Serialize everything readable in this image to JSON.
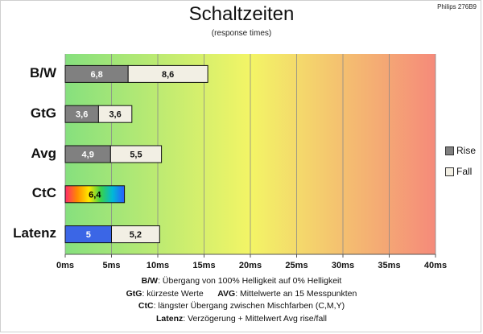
{
  "chart_data": {
    "type": "bar",
    "title": "Schaltzeiten",
    "subtitle": "(response times)",
    "model": "Philips 276B9",
    "categories": [
      "B/W",
      "GtG",
      "Avg",
      "CtC",
      "Latenz"
    ],
    "series": [
      {
        "name": "Rise",
        "values": [
          6.8,
          3.6,
          4.9,
          6.4,
          5
        ],
        "labels": [
          "6,8",
          "3,6",
          "4,9",
          "6,4",
          "5"
        ],
        "color": "#808080"
      },
      {
        "name": "Fall",
        "values": [
          8.6,
          3.6,
          5.5,
          null,
          5.2
        ],
        "labels": [
          "8,6",
          "3,6",
          "5,5",
          "",
          "5,2"
        ],
        "color": "#f2efe4"
      }
    ],
    "special_colors": {
      "CtC": "rainbow",
      "Latenz": "#3b66e6"
    },
    "stacked": true,
    "orientation": "horizontal",
    "xlim": [
      0,
      40
    ],
    "xticks": [
      0,
      5,
      10,
      15,
      20,
      25,
      30,
      35,
      40
    ],
    "xtick_labels": [
      "0ms",
      "5ms",
      "10ms",
      "15ms",
      "20ms",
      "25ms",
      "30ms",
      "35ms",
      "40ms"
    ],
    "background_gradient": [
      "#86e07e",
      "#f3f566",
      "#f58a7a"
    ],
    "grid": true,
    "legend": "right",
    "legend_items": [
      {
        "label": "Rise",
        "color": "#808080"
      },
      {
        "label": "Fall",
        "color": "#f2efe4"
      }
    ],
    "notes": [
      {
        "term": "B/W",
        "text": ":  Übergang von 100% Helligkeit auf 0% Helligkeit"
      },
      {
        "term": "GtG",
        "text": ": kürzeste  Werte",
        "term2": "AVG",
        "text2": ": Mittelwerte  an 15 Messpunkten"
      },
      {
        "term": "CtC",
        "text": ": längster Übergang  zwischen Mischfarben  (C,M,Y)"
      },
      {
        "term": "Latenz",
        "text": ": Verzögerung  + Mittelwert  Avg rise/fall"
      }
    ]
  }
}
